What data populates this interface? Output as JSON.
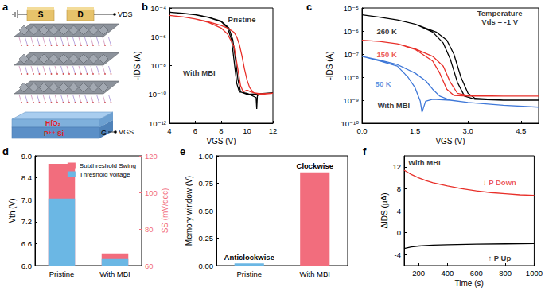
{
  "schematic": {
    "panel": "a",
    "source": "S",
    "drain": "D",
    "gate": "G",
    "vds": "VDS",
    "vgs": "VGS",
    "dielectric": "HfO₂",
    "substrate": "P⁺⁺ Si"
  },
  "chart_data": [
    {
      "panel": "b",
      "type": "line",
      "x_label": "VGS (V)",
      "y_label": "-IDS (A)",
      "log": "y",
      "grid": false,
      "xlim": [
        4,
        12
      ],
      "xticks": [
        4,
        6,
        8,
        10,
        12
      ],
      "ylim": [
        1e-12,
        0.0001
      ],
      "yticks": [
        {
          "value": 1e-12,
          "label": "10⁻¹²"
        },
        {
          "value": 1e-10,
          "label": "10⁻¹⁰"
        },
        {
          "value": 1e-08,
          "label": "10⁻⁸"
        },
        {
          "value": 1e-06,
          "label": "10⁻⁶"
        },
        {
          "value": 0.0001,
          "label": "10⁻⁴"
        }
      ],
      "series": [
        {
          "name": "Pristine",
          "color": "#000000",
          "x": [
            4,
            5,
            6,
            7,
            8,
            8.5,
            8.8,
            9.0,
            9.2,
            9.4,
            10,
            10.7,
            10.75,
            10.8,
            11,
            12,
            12,
            11,
            10,
            9.5,
            9.3,
            9.1,
            8.9,
            8.6,
            8,
            7,
            6,
            5,
            4
          ],
          "values": [
            5e-05,
            4.2e-05,
            3.3e-05,
            2.2e-05,
            1.1e-05,
            4e-06,
            6e-07,
            2e-08,
            6e-10,
            1.5e-10,
            1.2e-10,
            6e-11,
            1e-11,
            8e-11,
            1.1e-10,
            1.3e-10,
            1.3e-10,
            1.1e-10,
            1e-10,
            1.5e-10,
            1e-09,
            3e-08,
            6e-07,
            4e-06,
            1.2e-05,
            2.3e-05,
            3.4e-05,
            4.3e-05,
            5e-05
          ]
        },
        {
          "name": "With MBI",
          "color": "#e8302a",
          "x": [
            4,
            5,
            6,
            7,
            8,
            8.5,
            9,
            9.3,
            9.5,
            9.7,
            10,
            10.3,
            11,
            12,
            12,
            11,
            10.5,
            10.2,
            10,
            9.8,
            9.6,
            9.4,
            9.2,
            9,
            8.5,
            8,
            7,
            6,
            5,
            4
          ],
          "values": [
            3e-05,
            2.4e-05,
            1.7e-05,
            1e-05,
            4e-06,
            1.5e-06,
            2e-07,
            5e-09,
            4e-10,
            1.5e-10,
            2e-10,
            1.5e-10,
            1e-10,
            1.2e-10,
            1.2e-10,
            1.1e-10,
            1.3e-10,
            3e-10,
            1e-09,
            6e-09,
            5e-08,
            3e-07,
            1e-06,
            2e-06,
            4e-06,
            6e-06,
            1.1e-05,
            1.7e-05,
            2.4e-05,
            3e-05
          ]
        }
      ],
      "annotations": [
        {
          "text": "Pristine",
          "x": 9.6,
          "y": 1.5e-05,
          "color": "#000000"
        },
        {
          "text": "With MBI",
          "x": 6.3,
          "y": 3e-09,
          "color": "#000000"
        }
      ]
    },
    {
      "panel": "c",
      "type": "line",
      "x_label": "VGS (V)",
      "y_label": "-IDS (A)",
      "log": "y",
      "grid": false,
      "xlim": [
        0,
        5
      ],
      "xticks": [
        {
          "value": 0,
          "label": "0.0"
        },
        {
          "value": 1.5,
          "label": "1.5"
        },
        {
          "value": 3,
          "label": "3.0"
        },
        {
          "value": 4.5,
          "label": "4.5"
        }
      ],
      "ylim": [
        1e-10,
        1e-05
      ],
      "yticks": [
        {
          "value": 1e-10,
          "label": "10⁻¹⁰"
        },
        {
          "value": 1e-09,
          "label": "10⁻⁹"
        },
        {
          "value": 1e-08,
          "label": "10⁻⁸"
        },
        {
          "value": 1e-07,
          "label": "10⁻⁷"
        },
        {
          "value": 1e-06,
          "label": "10⁻⁶"
        },
        {
          "value": 1e-05,
          "label": "10⁻⁵"
        }
      ],
      "series": [
        {
          "name": "260 K",
          "color": "#000000",
          "x": [
            0,
            0.5,
            1,
            1.5,
            2,
            2.3,
            2.5,
            2.7,
            2.9,
            3.2,
            4,
            5,
            5,
            4,
            3.2,
            3.0,
            2.8,
            2.6,
            2.4,
            2.1,
            1.5,
            1,
            0.5,
            0
          ],
          "values": [
            5e-06,
            4e-06,
            3e-06,
            2e-06,
            9e-07,
            3e-07,
            6e-08,
            6e-09,
            1.5e-09,
            1.1e-09,
            1e-09,
            1e-09,
            1e-09,
            1e-09,
            1.2e-09,
            2e-09,
            1e-08,
            1e-07,
            4e-07,
            9e-07,
            2e-06,
            3e-06,
            4e-06,
            5e-06
          ]
        },
        {
          "name": "150 K",
          "color": "#e8302a",
          "x": [
            0,
            0.5,
            1,
            1.5,
            2,
            2.2,
            2.4,
            2.6,
            3,
            4,
            5,
            5,
            4,
            3,
            2.7,
            2.5,
            2.3,
            2,
            1.5,
            1,
            0.5,
            0
          ],
          "values": [
            4e-07,
            3.5e-07,
            2.8e-07,
            1.6e-07,
            5e-08,
            1.5e-08,
            3e-09,
            1.6e-09,
            1.5e-09,
            1.5e-09,
            1.5e-09,
            1.5e-09,
            1.5e-09,
            1.6e-09,
            2e-09,
            6e-09,
            3e-08,
            8e-08,
            1.7e-07,
            2.8e-07,
            3.5e-07,
            4e-07
          ]
        },
        {
          "name": "50 K",
          "color": "#3f78d8",
          "x": [
            0,
            0.5,
            1,
            1.3,
            1.5,
            1.65,
            1.7,
            1.8,
            2,
            2.5,
            3,
            4,
            5,
            5,
            4,
            3,
            2.5,
            2.2,
            2,
            1.8,
            1.5,
            1,
            0.5,
            0
          ],
          "values": [
            8e-08,
            5e-08,
            3e-08,
            1e-08,
            3.5e-09,
            9e-10,
            3e-10,
            9e-10,
            1.1e-09,
            1e-09,
            8e-10,
            6e-10,
            5e-10,
            5e-10,
            6e-10,
            8e-10,
            1e-09,
            1.5e-09,
            3e-09,
            7e-09,
            1.5e-08,
            3.5e-08,
            5.5e-08,
            8e-08
          ]
        }
      ],
      "annotations": [
        {
          "text": "Temperature",
          "x": 3.9,
          "y": 6e-06,
          "color": "#000000"
        },
        {
          "text": "Vds = -1 V",
          "x": 3.9,
          "y": 2.5e-06,
          "color": "#000000"
        },
        {
          "text": "260 K",
          "x": 0.7,
          "y": 1e-06,
          "color": "#000000"
        },
        {
          "text": "150 K",
          "x": 0.7,
          "y": 1e-07,
          "color": "#e8302a"
        },
        {
          "text": "50 K",
          "x": 0.6,
          "y": 5e-09,
          "color": "#3f78d8"
        },
        {
          "text": "With MBI",
          "x": 0.9,
          "y": 6e-10,
          "color": "#000000"
        }
      ]
    },
    {
      "panel": "d",
      "type": "bar",
      "grid": false,
      "categories": [
        "Pristine",
        "With MBI"
      ],
      "y_label": "Vth (V)",
      "y2_label": "SS (mV/dec)",
      "ylim": [
        6,
        9
      ],
      "yticks": [
        {
          "value": 6,
          "label": "6.0"
        },
        {
          "value": 6.6,
          "label": "6.6"
        },
        {
          "value": 7.2,
          "label": "7.2"
        },
        {
          "value": 7.8,
          "label": "7.8"
        },
        {
          "value": 8.4,
          "label": "8.4"
        },
        {
          "value": 9,
          "label": "9.0"
        }
      ],
      "y2lim": [
        60,
        120
      ],
      "y2ticks": [
        60,
        80,
        100,
        120
      ],
      "legend": "upper right",
      "series": [
        {
          "name": "Subthreshold Swing",
          "color": "#f26d7d",
          "axis": "y2",
          "values": [
            115.6,
            66.6
          ]
        },
        {
          "name": "Threshold voltage",
          "color": "#6bb7e4",
          "values": [
            7.83,
            6.18
          ]
        }
      ]
    },
    {
      "panel": "e",
      "type": "bar",
      "grid": false,
      "categories": [
        "Pristine",
        "With MBI"
      ],
      "y_label": "Memory window (V)",
      "ylim": [
        0,
        1
      ],
      "yticks": [
        {
          "value": 0,
          "label": "0.00"
        },
        {
          "value": 0.25,
          "label": "0.25"
        },
        {
          "value": 0.5,
          "label": "0.50"
        },
        {
          "value": 0.75,
          "label": "0.75"
        },
        {
          "value": 1,
          "label": "1.00"
        }
      ],
      "values": [
        0.02,
        0.85
      ],
      "colors": [
        "#6bb7e4",
        "#f26d7d"
      ],
      "annotations": [
        {
          "text": "Anticlockwise",
          "category": "Pristine"
        },
        {
          "text": "Clockwise",
          "category": "With MBI"
        }
      ]
    },
    {
      "panel": "f",
      "type": "line",
      "grid": false,
      "x_label": "Time (s)",
      "y_label": "ΔIDS (μA)",
      "xlim": [
        100,
        1000
      ],
      "xticks": [
        200,
        400,
        600,
        800,
        1000
      ],
      "ylim": [
        -6,
        14
      ],
      "yticks": [
        -4,
        0,
        4,
        8,
        12
      ],
      "series": [
        {
          "name": "P Down",
          "color": "#e8302a",
          "x": [
            100,
            150,
            200,
            250,
            300,
            400,
            500,
            600,
            700,
            800,
            900,
            1000
          ],
          "values": [
            11.4,
            10.6,
            10.0,
            9.5,
            9.1,
            8.5,
            8.0,
            7.6,
            7.3,
            7.1,
            6.9,
            6.8
          ]
        },
        {
          "name": "P Up",
          "color": "#000000",
          "x": [
            100,
            150,
            200,
            300,
            400,
            600,
            800,
            1000
          ],
          "values": [
            -2.9,
            -2.6,
            -2.45,
            -2.3,
            -2.2,
            -2.1,
            -2.05,
            -2.0
          ]
        }
      ],
      "annotations": [
        {
          "text": "With MBI",
          "x": 240,
          "y": 12.8,
          "color": "#000000"
        },
        {
          "text": "↓ P Down",
          "x": 760,
          "y": 9.2,
          "color": "#e8302a"
        },
        {
          "text": "↑ P Up",
          "x": 760,
          "y": -4.6,
          "color": "#000000"
        }
      ]
    }
  ]
}
